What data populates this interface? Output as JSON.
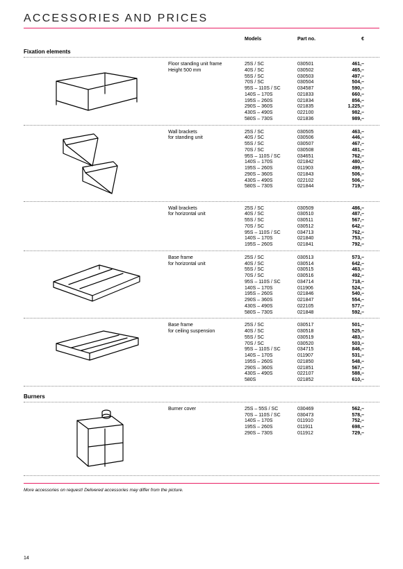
{
  "title": "ACCESSORIES AND PRICES",
  "columns": {
    "models": "Models",
    "part": "Part no.",
    "euro": "€"
  },
  "sections": [
    {
      "name": "Fixation elements",
      "items": [
        {
          "svg": "table",
          "desc": "Floor standing unit frame\nHeight 500 mm",
          "rows": [
            [
              "25S / SC",
              "030501",
              "461,–"
            ],
            [
              "40S / SC",
              "030502",
              "465,–"
            ],
            [
              "55S / SC",
              "030503",
              "497,–"
            ],
            [
              "70S / SC",
              "030504",
              "504,–"
            ],
            [
              "95S – 110S / SC",
              "034587",
              "590,–"
            ],
            [
              "140S – 170S",
              "021833",
              "660,–"
            ],
            [
              "195S – 260S",
              "021834",
              "856,–"
            ],
            [
              "290S – 360S",
              "021835",
              "1.225,–"
            ],
            [
              "430S – 490S",
              "022100",
              "982,–"
            ],
            [
              "580S – 730S",
              "021836",
              "989,–"
            ]
          ]
        },
        {
          "svg": "brackets",
          "desc": "Wall brackets\nfor standing unit",
          "rows": [
            [
              "25S / SC",
              "030505",
              "463,–"
            ],
            [
              "40S / SC",
              "030506",
              "446,–"
            ],
            [
              "55S / SC",
              "030507",
              "467,–"
            ],
            [
              "70S / SC",
              "030508",
              "481,–"
            ],
            [
              "95S – 110S / SC",
              "034651",
              "762,–"
            ],
            [
              "140S – 170S",
              "021842",
              "480,–"
            ],
            [
              "195S – 260S",
              "011903",
              "499,–"
            ],
            [
              "290S – 360S",
              "021843",
              "506,–"
            ],
            [
              "430S – 490S",
              "022102",
              "506,–"
            ],
            [
              "580S – 730S",
              "021844",
              "719,–"
            ]
          ]
        },
        {
          "svg": "",
          "desc": "Wall brackets\nfor horizontal unit",
          "rows": [
            [
              "25S / SC",
              "030509",
              "486,–"
            ],
            [
              "40S / SC",
              "030510",
              "487,–"
            ],
            [
              "55S / SC",
              "030511",
              "567,–"
            ],
            [
              "70S / SC",
              "030512",
              "642,–"
            ],
            [
              "95S – 110S / SC",
              "034713",
              "762,–"
            ],
            [
              "140S – 170S",
              "021840",
              "753,–"
            ],
            [
              "195S – 260S",
              "021841",
              "792,–"
            ]
          ]
        },
        {
          "svg": "frame",
          "desc": "Base frame\nfor horizontal unit",
          "rows": [
            [
              "25S / SC",
              "030513",
              "573,–"
            ],
            [
              "40S / SC",
              "030514",
              "642,–"
            ],
            [
              "55S / SC",
              "030515",
              "463,–"
            ],
            [
              "70S / SC",
              "030516",
              "492,–"
            ],
            [
              "95S – 110S / SC",
              "034714",
              "718,–"
            ],
            [
              "140S – 170S",
              "011906",
              "524,–"
            ],
            [
              "195S – 260S",
              "021846",
              "540,–"
            ],
            [
              "290S – 360S",
              "021847",
              "554,–"
            ],
            [
              "430S – 490S",
              "022105",
              "577,–"
            ],
            [
              "580S – 730S",
              "021848",
              "592,–"
            ]
          ]
        },
        {
          "svg": "ceiling",
          "desc": "Base frame\nfor ceiling suspension",
          "rows": [
            [
              "25S / SC",
              "030517",
              "501,–"
            ],
            [
              "40S / SC",
              "030518",
              "525,–"
            ],
            [
              "55S / SC",
              "030519",
              "483,–"
            ],
            [
              "70S / SC",
              "030520",
              "503,–"
            ],
            [
              "95S – 110S / SC",
              "034715",
              "846,–"
            ],
            [
              "140S – 170S",
              "011907",
              "531,–"
            ],
            [
              "195S – 260S",
              "021850",
              "548,–"
            ],
            [
              "290S – 360S",
              "021851",
              "567,–"
            ],
            [
              "430S – 490S",
              "022107",
              "588,–"
            ],
            [
              "580S",
              "021852",
              "610,–"
            ]
          ]
        }
      ]
    },
    {
      "name": "Burners",
      "items": [
        {
          "svg": "burner",
          "desc": "Burner cover",
          "rows": [
            [
              "25S –   55S / SC",
              "030469",
              "562,–"
            ],
            [
              "70S – 110S / SC",
              "030473",
              "578,–"
            ],
            [
              "140S – 170S",
              "011910",
              "752,–"
            ],
            [
              "195S – 260S",
              "011911",
              "698,–"
            ],
            [
              "290S – 730S",
              "011912",
              "729,–"
            ]
          ]
        }
      ]
    }
  ],
  "footnote": "More accessories on request! Delivered accessories may differ from the picture.",
  "page": "14",
  "svgs": {
    "table": "<svg width='150' height='78' viewBox='0 0 150 78'><path d='M18 28 L88 16 L134 24 L64 40 Z M18 28 L18 56 M88 16 L88 40 M134 24 L134 52 M64 40 L64 70 M18 56 L64 70 L134 52 M64 40 L134 24 M18 28 L64 40'/><path d='M18 56 L18 62 M134 52 L134 58 M88 40 L88 46'/></svg>",
    "brackets": "<svg width='150' height='100' viewBox='0 0 150 100'><g transform='translate(28,6)'><path d='M0 8 L44 0 L50 6 L4 16 Z M0 8 L0 28 L42 46 L50 6 M4 16 L42 46'/></g><g transform='translate(56,46)'><path d='M0 8 L44 0 L50 6 L4 16 Z M0 8 L0 28 L42 46 L50 6 M4 16 L42 46'/></g></svg>",
    "frame": "<svg width='150' height='82' viewBox='0 0 150 82'><path d='M14 38 L80 14 L138 30 L70 58 Z M14 38 L14 46 L70 66 L138 38 L138 30 M70 58 L70 66 M80 14 L80 20'/><path d='M36 42 L98 20 M52 48 L114 26'/></svg>",
    "ceiling": "<svg width='150' height='70' viewBox='0 0 150 70'><path d='M18 30 L86 12 L136 22 L66 44 Z M18 30 L18 40 L66 54 L136 32 L136 22 M66 44 L66 54'/><path d='M40 36 L108 18 M54 40 L120 22'/></svg>",
    "burner": "<svg width='110' height='96' viewBox='0 0 110 96'><path d='M28 20 L78 14 L94 26 L94 78 L44 86 L28 72 Z M78 14 L94 26 M28 20 L44 32 L94 26 M44 32 L44 86 M28 72 L28 20'/><path d='M44 58 L94 52 M68 32 L68 86'/><ellipse cx='70' cy='14' rx='6' ry='3'/><path d='M64 14 L64 8 A6 3 0 0 1 76 8 L76 14'/></svg>"
  }
}
